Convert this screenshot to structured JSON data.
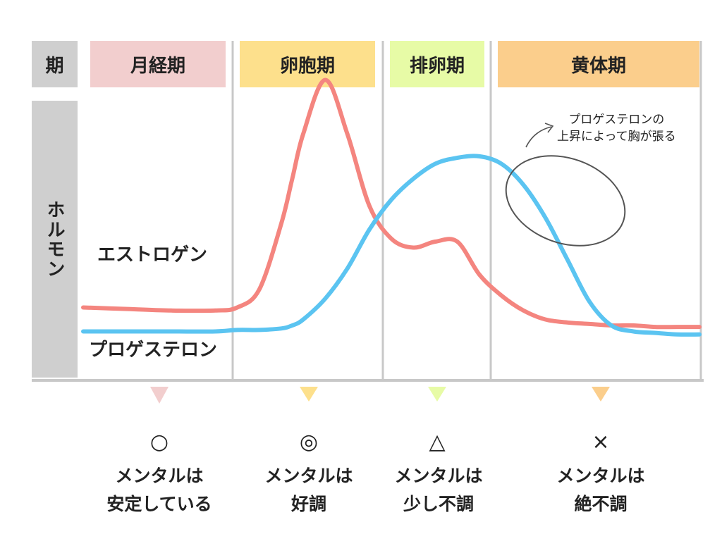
{
  "header": {
    "corner_label": "期",
    "phases": [
      {
        "label": "月経期",
        "color": "#f2cece"
      },
      {
        "label": "卵胞期",
        "color": "#fde08c"
      },
      {
        "label": "排卵期",
        "color": "#e7fba6"
      },
      {
        "label": "黄体期",
        "color": "#fbce8c"
      }
    ]
  },
  "axis_label": "ホルモン",
  "note": {
    "line1": "プロゲステロンの",
    "line2": "上昇によって胸が張る"
  },
  "chart_data": {
    "type": "line",
    "x": [
      0,
      2,
      4,
      6,
      7,
      8,
      9,
      9.5,
      10,
      11,
      12,
      13,
      14,
      15,
      16,
      17,
      18,
      19,
      20,
      21,
      22,
      23,
      24,
      25,
      26,
      27,
      28
    ],
    "xlim": [
      0,
      28
    ],
    "ylim": [
      0,
      10
    ],
    "series": [
      {
        "name": "エストロゲン",
        "color": "#f4857f",
        "values": [
          2.2,
          2.15,
          2.1,
          2.1,
          2.2,
          2.8,
          5.0,
          6.5,
          8.0,
          9.8,
          8.0,
          5.6,
          4.5,
          4.2,
          4.4,
          4.4,
          3.3,
          2.6,
          2.1,
          1.8,
          1.7,
          1.65,
          1.6,
          1.6,
          1.55,
          1.55,
          1.55
        ]
      },
      {
        "name": "プロゲステロン",
        "color": "#5bc4f1",
        "values": [
          1.4,
          1.4,
          1.4,
          1.4,
          1.45,
          1.45,
          1.5,
          1.6,
          1.8,
          2.5,
          3.5,
          4.8,
          5.8,
          6.5,
          7.0,
          7.2,
          7.25,
          7.0,
          6.3,
          5.2,
          3.8,
          2.4,
          1.6,
          1.4,
          1.35,
          1.3,
          1.3
        ]
      }
    ]
  },
  "moods": [
    {
      "symbol": "○",
      "line1": "メンタルは",
      "line2": "安定している",
      "marker_color": "#f2cece"
    },
    {
      "symbol": "◎",
      "line1": "メンタルは",
      "line2": "好調",
      "marker_color": "#fde08c"
    },
    {
      "symbol": "△",
      "line1": "メンタルは",
      "line2": "少し不調",
      "marker_color": "#e7fba6"
    },
    {
      "symbol": "×",
      "line1": "メンタルは",
      "line2": "絶不調",
      "marker_color": "#fbce8c"
    }
  ]
}
